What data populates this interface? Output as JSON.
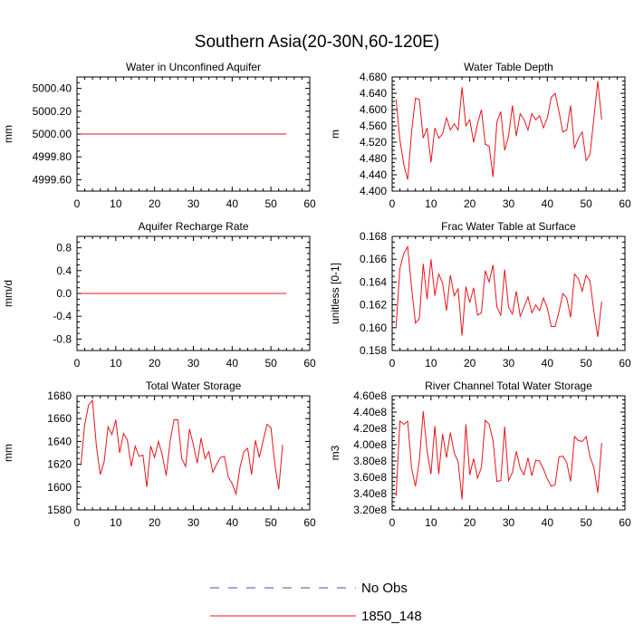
{
  "figure": {
    "title": "Southern Asia(20-30N,60-120E)"
  },
  "legend": {
    "entries": [
      {
        "label": "No Obs",
        "color": "#4a4ab0",
        "style": "dashed"
      },
      {
        "label": "1850_148",
        "color": "#e8141c",
        "style": "solid"
      }
    ]
  },
  "chart_data": [
    {
      "type": "line",
      "title": "Water in Unconfined Aquifer",
      "ylabel": "mm",
      "xlim": [
        0,
        60
      ],
      "ylim": [
        4999.5,
        5000.5
      ],
      "xticks": [
        0,
        10,
        20,
        30,
        40,
        50,
        60
      ],
      "yticks": [
        4999.6,
        4999.8,
        5000.0,
        5000.2,
        5000.4
      ],
      "ytick_labels": [
        "4999.60",
        "4999.80",
        "5000.00",
        "5000.20",
        "5000.40"
      ],
      "series": [
        {
          "name": "1850_148",
          "color": "#e8141c",
          "x_start": 1,
          "x_step": 1,
          "values": [
            5000,
            5000,
            5000,
            5000,
            5000,
            5000,
            5000,
            5000,
            5000,
            5000,
            5000,
            5000,
            5000,
            5000,
            5000,
            5000,
            5000,
            5000,
            5000,
            5000,
            5000,
            5000,
            5000,
            5000,
            5000,
            5000,
            5000,
            5000,
            5000,
            5000,
            5000,
            5000,
            5000,
            5000,
            5000,
            5000,
            5000,
            5000,
            5000,
            5000,
            5000,
            5000,
            5000,
            5000,
            5000,
            5000,
            5000,
            5000,
            5000,
            5000,
            5000,
            5000,
            5000,
            5000
          ]
        }
      ]
    },
    {
      "type": "line",
      "title": "Water Table Depth",
      "ylabel": "m",
      "xlim": [
        0,
        60
      ],
      "ylim": [
        4.4,
        4.68
      ],
      "xticks": [
        0,
        10,
        20,
        30,
        40,
        50,
        60
      ],
      "yticks": [
        4.4,
        4.44,
        4.48,
        4.52,
        4.56,
        4.6,
        4.64,
        4.68
      ],
      "ytick_labels": [
        "4.400",
        "4.440",
        "4.480",
        "4.520",
        "4.560",
        "4.600",
        "4.640",
        "4.680"
      ],
      "series": [
        {
          "name": "1850_148",
          "color": "#e8141c",
          "x_start": 1,
          "x_step": 1,
          "values": [
            4.625,
            4.525,
            4.465,
            4.428,
            4.545,
            4.628,
            4.625,
            4.53,
            4.555,
            4.47,
            4.555,
            4.53,
            4.54,
            4.58,
            4.55,
            4.565,
            4.55,
            4.655,
            4.56,
            4.575,
            4.52,
            4.565,
            4.6,
            4.515,
            4.51,
            4.435,
            4.57,
            4.595,
            4.5,
            4.535,
            4.61,
            4.535,
            4.59,
            4.575,
            4.55,
            4.59,
            4.575,
            4.585,
            4.555,
            4.58,
            4.63,
            4.64,
            4.595,
            4.545,
            4.55,
            4.61,
            4.505,
            4.53,
            4.545,
            4.475,
            4.49,
            4.58,
            4.67,
            4.575
          ]
        }
      ]
    },
    {
      "type": "line",
      "title": "Aquifer Recharge Rate",
      "ylabel": "mm/d",
      "xlim": [
        0,
        60
      ],
      "ylim": [
        -1.0,
        1.0
      ],
      "xticks": [
        0,
        10,
        20,
        30,
        40,
        50,
        60
      ],
      "yticks": [
        -0.8,
        -0.4,
        0.0,
        0.4,
        0.8
      ],
      "ytick_labels": [
        "-0.8",
        "-0.4",
        "0.0",
        "0.4",
        "0.8"
      ],
      "series": [
        {
          "name": "1850_148",
          "color": "#e8141c",
          "x_start": 1,
          "x_step": 1,
          "values": [
            0,
            0,
            0,
            0,
            0,
            0,
            0,
            0,
            0,
            0,
            0,
            0,
            0,
            0,
            0,
            0,
            0,
            0,
            0,
            0,
            0,
            0,
            0,
            0,
            0,
            0,
            0,
            0,
            0,
            0,
            0,
            0,
            0,
            0,
            0,
            0,
            0,
            0,
            0,
            0,
            0,
            0,
            0,
            0,
            0,
            0,
            0,
            0,
            0,
            0,
            0,
            0,
            0,
            0
          ]
        }
      ]
    },
    {
      "type": "line",
      "title": "Frac Water Table at Surface",
      "ylabel": "unitless [0-1]",
      "xlim": [
        0,
        60
      ],
      "ylim": [
        0.158,
        0.168
      ],
      "xticks": [
        0,
        10,
        20,
        30,
        40,
        50,
        60
      ],
      "yticks": [
        0.158,
        0.16,
        0.162,
        0.164,
        0.166,
        0.168
      ],
      "ytick_labels": [
        "0.158",
        "0.160",
        "0.162",
        "0.164",
        "0.166",
        "0.168"
      ],
      "series": [
        {
          "name": "1850_148",
          "color": "#e8141c",
          "x_start": 1,
          "x_step": 1,
          "values": [
            0.1601,
            0.1652,
            0.1665,
            0.1671,
            0.1635,
            0.1604,
            0.1608,
            0.1656,
            0.1625,
            0.166,
            0.1628,
            0.1647,
            0.1639,
            0.1615,
            0.1646,
            0.1628,
            0.1634,
            0.1593,
            0.1636,
            0.1622,
            0.1635,
            0.1611,
            0.1613,
            0.165,
            0.164,
            0.1655,
            0.1618,
            0.1611,
            0.1651,
            0.1618,
            0.1612,
            0.1632,
            0.161,
            0.1618,
            0.1627,
            0.1613,
            0.162,
            0.1615,
            0.1626,
            0.1617,
            0.1601,
            0.1601,
            0.1614,
            0.163,
            0.1626,
            0.1609,
            0.1647,
            0.1643,
            0.1632,
            0.1646,
            0.1641,
            0.1614,
            0.1592,
            0.1623
          ]
        }
      ]
    },
    {
      "type": "line",
      "title": "Total Water Storage",
      "ylabel": "mm",
      "xlim": [
        0,
        60
      ],
      "ylim": [
        1580,
        1680
      ],
      "xticks": [
        0,
        10,
        20,
        30,
        40,
        50,
        60
      ],
      "yticks": [
        1580,
        1600,
        1620,
        1640,
        1660,
        1680
      ],
      "ytick_labels": [
        "1580",
        "1600",
        "1620",
        "1640",
        "1660",
        "1680"
      ],
      "series": [
        {
          "name": "1850_148",
          "color": "#e8141c",
          "x_start": 1,
          "x_step": 1,
          "values": [
            1619,
            1655,
            1672,
            1676,
            1636,
            1611,
            1622,
            1653,
            1646,
            1659,
            1630,
            1647,
            1641,
            1618,
            1636,
            1627,
            1628,
            1600,
            1636,
            1626,
            1640,
            1628,
            1610,
            1640,
            1659,
            1659,
            1625,
            1618,
            1651,
            1637,
            1621,
            1643,
            1625,
            1631,
            1613,
            1620,
            1626,
            1627,
            1609,
            1603,
            1594,
            1617,
            1631,
            1634,
            1611,
            1641,
            1626,
            1641,
            1655,
            1652,
            1620,
            1598,
            1637
          ]
        }
      ]
    },
    {
      "type": "line",
      "title": "River Channel Total Water Storage",
      "ylabel": "m3",
      "xlim": [
        0,
        60
      ],
      "ylim": [
        320000000,
        460000000
      ],
      "xticks": [
        0,
        10,
        20,
        30,
        40,
        50,
        60
      ],
      "yticks": [
        320000000,
        340000000,
        360000000,
        380000000,
        400000000,
        420000000,
        440000000,
        460000000
      ],
      "ytick_labels": [
        "3.20e8",
        "3.40e8",
        "3.60e8",
        "3.80e8",
        "4.00e8",
        "4.20e8",
        "4.40e8",
        "4.60e8"
      ],
      "series": [
        {
          "name": "1850_148",
          "color": "#e8141c",
          "x_start": 1,
          "x_step": 1,
          "values": [
            337000000,
            429000000,
            425000000,
            429000000,
            371000000,
            349000000,
            380000000,
            441000000,
            392000000,
            364000000,
            423000000,
            364000000,
            413000000,
            384000000,
            415000000,
            390000000,
            379000000,
            333000000,
            425000000,
            363000000,
            383000000,
            359000000,
            372000000,
            430000000,
            425000000,
            405000000,
            355000000,
            356000000,
            422000000,
            356000000,
            366000000,
            392000000,
            371000000,
            363000000,
            384000000,
            362000000,
            381000000,
            380000000,
            370000000,
            358000000,
            349000000,
            351000000,
            385000000,
            386000000,
            378000000,
            355000000,
            410000000,
            405000000,
            404000000,
            410000000,
            385000000,
            372000000,
            341000000,
            402000000
          ]
        }
      ]
    }
  ]
}
